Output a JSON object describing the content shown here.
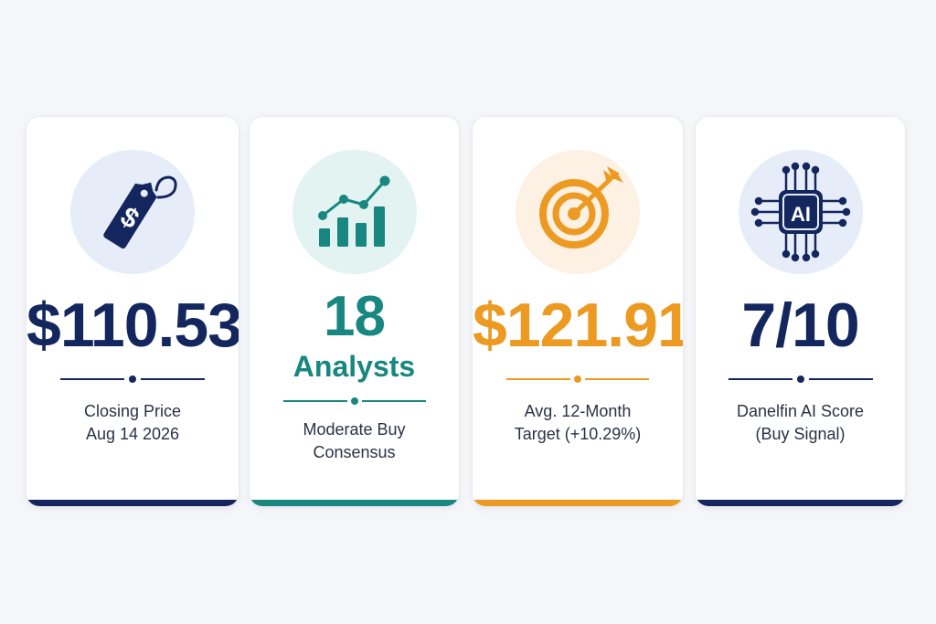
{
  "colors": {
    "navy": "#13275e",
    "teal": "#17877f",
    "orange": "#ec9a21",
    "navy_circle": "#e6edf8",
    "teal_circle": "#e2f3f1",
    "orange_circle": "#fdf1e3"
  },
  "cards": [
    {
      "icon": "price-tag-icon",
      "value": "$110.53",
      "caption_line1": "Closing Price",
      "caption_line2": "Aug 14 2026"
    },
    {
      "icon": "growth-chart-icon",
      "value": "18",
      "value_sub": "Analysts",
      "caption_line1": "Moderate Buy",
      "caption_line2": "Consensus"
    },
    {
      "icon": "target-icon",
      "value": "$121.91",
      "caption_line1": "Avg. 12-Month",
      "caption_line2": "Target (+10.29%)"
    },
    {
      "icon": "ai-chip-icon",
      "icon_text": "AI",
      "value": "7/10",
      "caption_line1": "Danelfin AI Score",
      "caption_line2": "(Buy Signal)"
    }
  ]
}
